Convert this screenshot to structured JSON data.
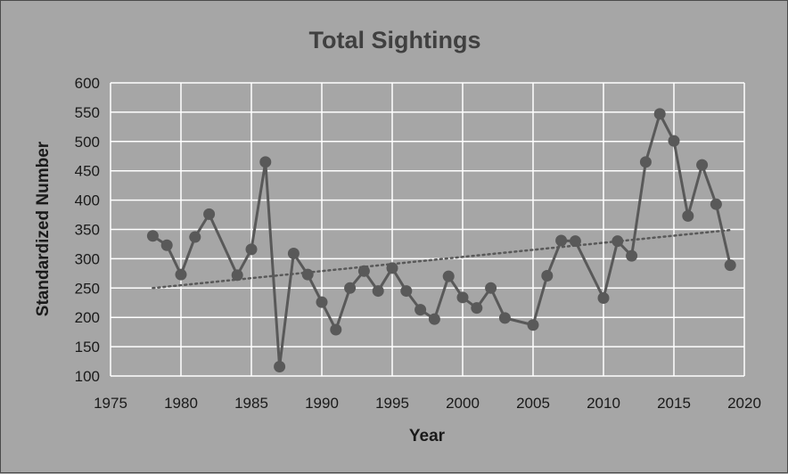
{
  "chart_data": {
    "type": "line",
    "title": "Total Sightings",
    "xlabel": "Year",
    "ylabel": "Standardized Number",
    "xlim": [
      1975,
      2020
    ],
    "ylim": [
      100,
      600
    ],
    "x_ticks": [
      "1975",
      "1980",
      "1985",
      "1990",
      "1995",
      "2000",
      "2005",
      "2010",
      "2015",
      "2020"
    ],
    "y_ticks": [
      "100",
      "150",
      "200",
      "250",
      "300",
      "350",
      "400",
      "450",
      "500",
      "550",
      "600"
    ],
    "grid": true,
    "legend": "none",
    "colors": {
      "background": "#a6a6a6",
      "series": "#595959",
      "gridline": "#ffffff",
      "trendline": "#595959"
    },
    "series": [
      {
        "marker": "circle",
        "points": [
          [
            1978,
            339
          ],
          [
            1979,
            323
          ],
          [
            1980,
            273
          ],
          [
            1981,
            337
          ],
          [
            1982,
            376
          ],
          [
            1984,
            272
          ],
          [
            1985,
            316
          ],
          [
            1986,
            465
          ],
          [
            1987,
            116
          ],
          [
            1988,
            309
          ],
          [
            1989,
            273
          ],
          [
            1990,
            226
          ],
          [
            1991,
            179
          ],
          [
            1992,
            250
          ],
          [
            1993,
            279
          ],
          [
            1994,
            245
          ],
          [
            1995,
            284
          ],
          [
            1996,
            245
          ],
          [
            1997,
            213
          ],
          [
            1998,
            197
          ],
          [
            1999,
            270
          ],
          [
            2000,
            234
          ],
          [
            2001,
            216
          ],
          [
            2002,
            250
          ],
          [
            2003,
            199
          ],
          [
            2005,
            187
          ],
          [
            2006,
            271
          ],
          [
            2007,
            331
          ],
          [
            2008,
            330
          ],
          [
            2010,
            233
          ],
          [
            2011,
            330
          ],
          [
            2012,
            305
          ],
          [
            2013,
            465
          ],
          [
            2014,
            547
          ],
          [
            2015,
            501
          ],
          [
            2016,
            373
          ],
          [
            2017,
            460
          ],
          [
            2018,
            393
          ],
          [
            2019,
            289
          ]
        ]
      }
    ],
    "trendline": {
      "type": "linear",
      "style": "dotted",
      "x": [
        1978,
        2019
      ],
      "y": [
        250,
        349
      ]
    }
  }
}
